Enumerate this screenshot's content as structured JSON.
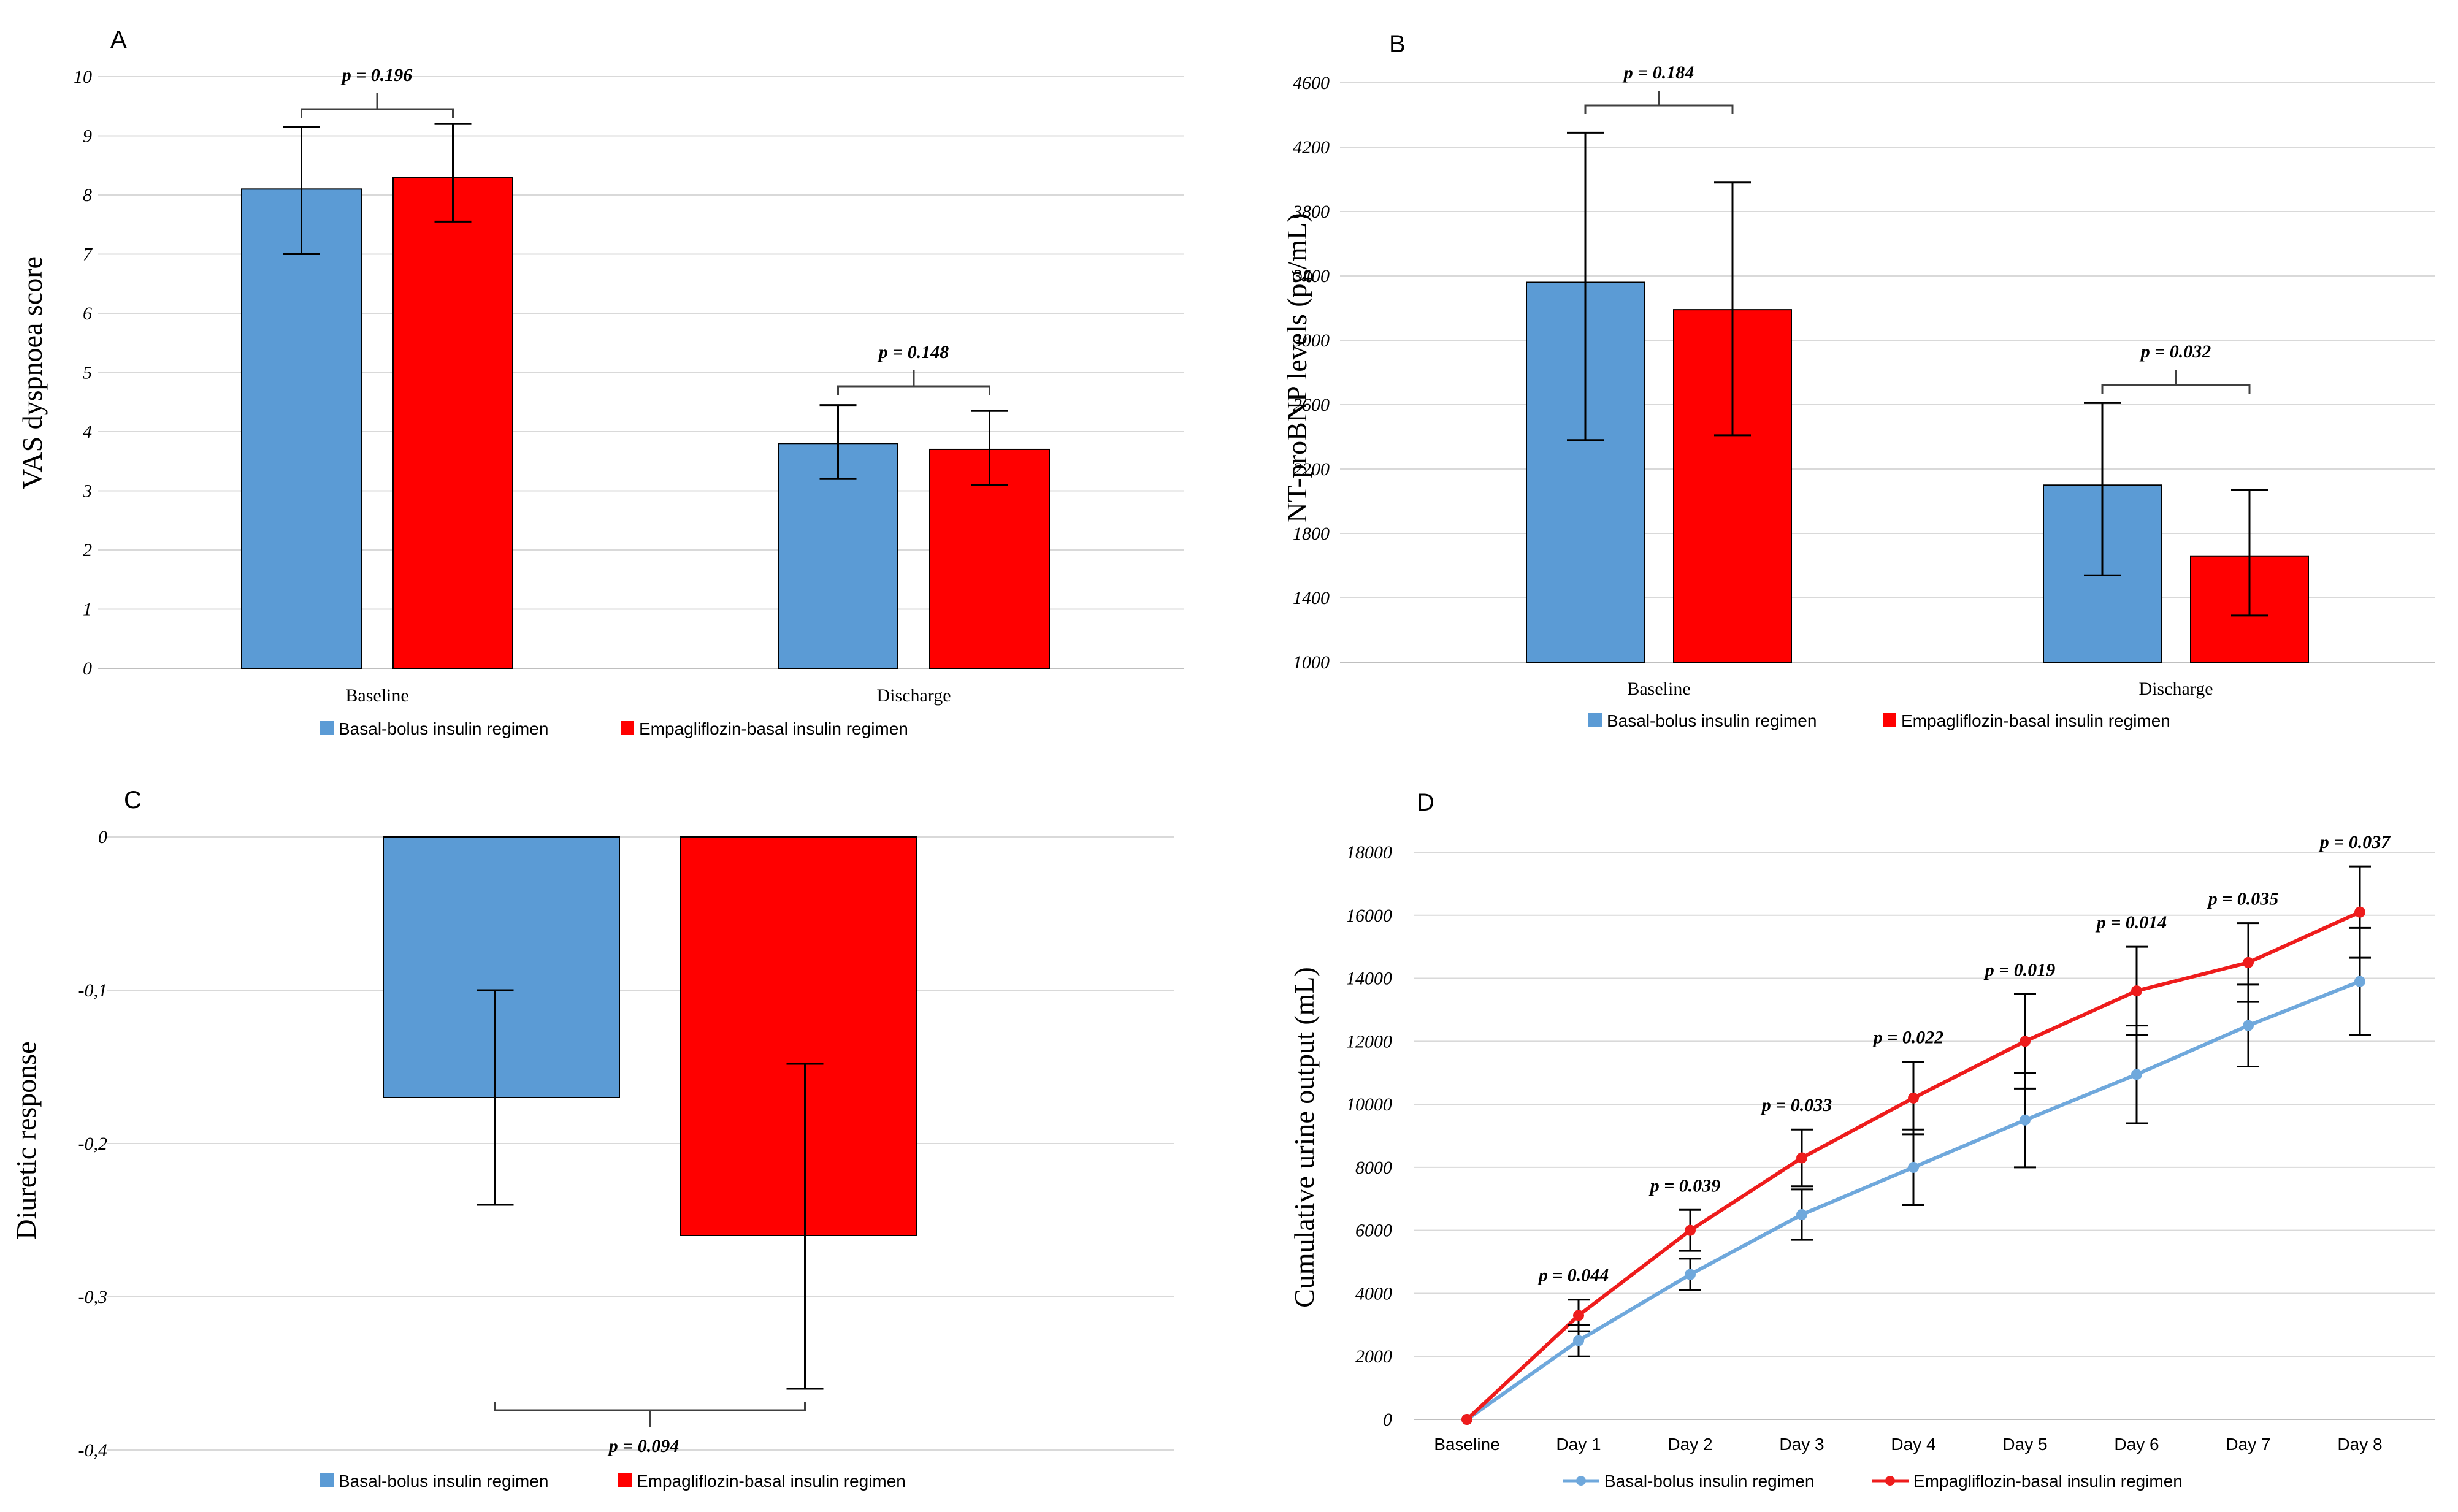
{
  "colors": {
    "basal_bolus": "#5b9bd5",
    "empagliflozin": "#ff0000",
    "line_blue": "#6fa8dc",
    "line_red": "#ee1c1c"
  },
  "legend": {
    "basal_bolus": "Basal-bolus insulin regimen",
    "empagliflozin": "Empagliflozin-basal insulin regimen"
  },
  "chart_data": [
    {
      "panel": "A",
      "type": "bar",
      "ylabel": "VAS dyspnoea score",
      "ylim": [
        0,
        10
      ],
      "yticks": [
        "0",
        "1",
        "2",
        "3",
        "4",
        "5",
        "6",
        "7",
        "8",
        "9",
        "10"
      ],
      "categories": [
        "Baseline",
        "Discharge"
      ],
      "series": [
        {
          "name": "Basal-bolus insulin regimen",
          "values": [
            8.1,
            3.8
          ],
          "err_low": [
            7.0,
            3.2
          ],
          "err_high": [
            9.15,
            4.45
          ]
        },
        {
          "name": "Empagliflozin-basal insulin regimen",
          "values": [
            8.3,
            3.7
          ],
          "err_low": [
            7.55,
            3.1
          ],
          "err_high": [
            9.2,
            4.35
          ]
        }
      ],
      "pvalues": [
        "p = 0.196",
        "p = 0.148"
      ],
      "legend_position": "bottom"
    },
    {
      "panel": "B",
      "type": "bar",
      "ylabel": "NT-proBNP levels (pg/mL)",
      "ylim": [
        1000,
        4600
      ],
      "yticks": [
        "1000",
        "1400",
        "1800",
        "2200",
        "2600",
        "3000",
        "3400",
        "3800",
        "4200",
        "4600"
      ],
      "categories": [
        "Baseline",
        "Discharge"
      ],
      "series": [
        {
          "name": "Basal-bolus insulin regimen",
          "values": [
            3360,
            2100
          ],
          "err_low": [
            2380,
            1540
          ],
          "err_high": [
            4290,
            2610
          ]
        },
        {
          "name": "Empagliflozin-basal insulin regimen",
          "values": [
            3190,
            1660
          ],
          "err_low": [
            2410,
            1290
          ],
          "err_high": [
            3980,
            2070
          ]
        }
      ],
      "pvalues": [
        "p = 0.184",
        "p = 0.032"
      ],
      "legend_position": "bottom"
    },
    {
      "panel": "C",
      "type": "bar",
      "ylabel": "Diuretic response",
      "ylim": [
        -0.4,
        0
      ],
      "yticks": [
        "0",
        "-0,1",
        "-0,2",
        "-0,3",
        "-0,4"
      ],
      "categories": [
        ""
      ],
      "series": [
        {
          "name": "Basal-bolus insulin regimen",
          "values": [
            -0.17
          ],
          "err_low": [
            -0.24
          ],
          "err_high": [
            -0.1
          ]
        },
        {
          "name": "Empagliflozin-basal insulin regimen",
          "values": [
            -0.26
          ],
          "err_low": [
            -0.36
          ],
          "err_high": [
            -0.148
          ]
        }
      ],
      "pvalues": [
        "p = 0.094"
      ],
      "legend_position": "bottom"
    },
    {
      "panel": "D",
      "type": "line",
      "ylabel": "Cumulative urine output (mL)",
      "ylim": [
        0,
        18000
      ],
      "yticks": [
        "0",
        "2000",
        "4000",
        "6000",
        "8000",
        "10000",
        "12000",
        "14000",
        "16000",
        "18000"
      ],
      "categories": [
        "Baseline",
        "Day 1",
        "Day 2",
        "Day 3",
        "Day 4",
        "Day 5",
        "Day 6",
        "Day 7",
        "Day 8"
      ],
      "series": [
        {
          "name": "Basal-bolus insulin regimen",
          "values": [
            0,
            2500,
            4600,
            6500,
            8000,
            9500,
            10950,
            12500,
            13900
          ],
          "err": [
            0,
            500,
            500,
            800,
            1200,
            1500,
            1550,
            1300,
            1700
          ]
        },
        {
          "name": "Empagliflozin-basal insulin regimen",
          "values": [
            0,
            3300,
            6000,
            8300,
            10200,
            12000,
            13600,
            14500,
            16100
          ],
          "err": [
            0,
            500,
            650,
            900,
            1150,
            1500,
            1400,
            1250,
            1450
          ]
        }
      ],
      "pvalues": [
        "",
        "p = 0.044",
        "p = 0.039",
        "p = 0.033",
        "p = 0.022",
        "p = 0.019",
        "p = 0.014",
        "p = 0.035",
        "p = 0.037"
      ],
      "legend_position": "bottom"
    }
  ]
}
